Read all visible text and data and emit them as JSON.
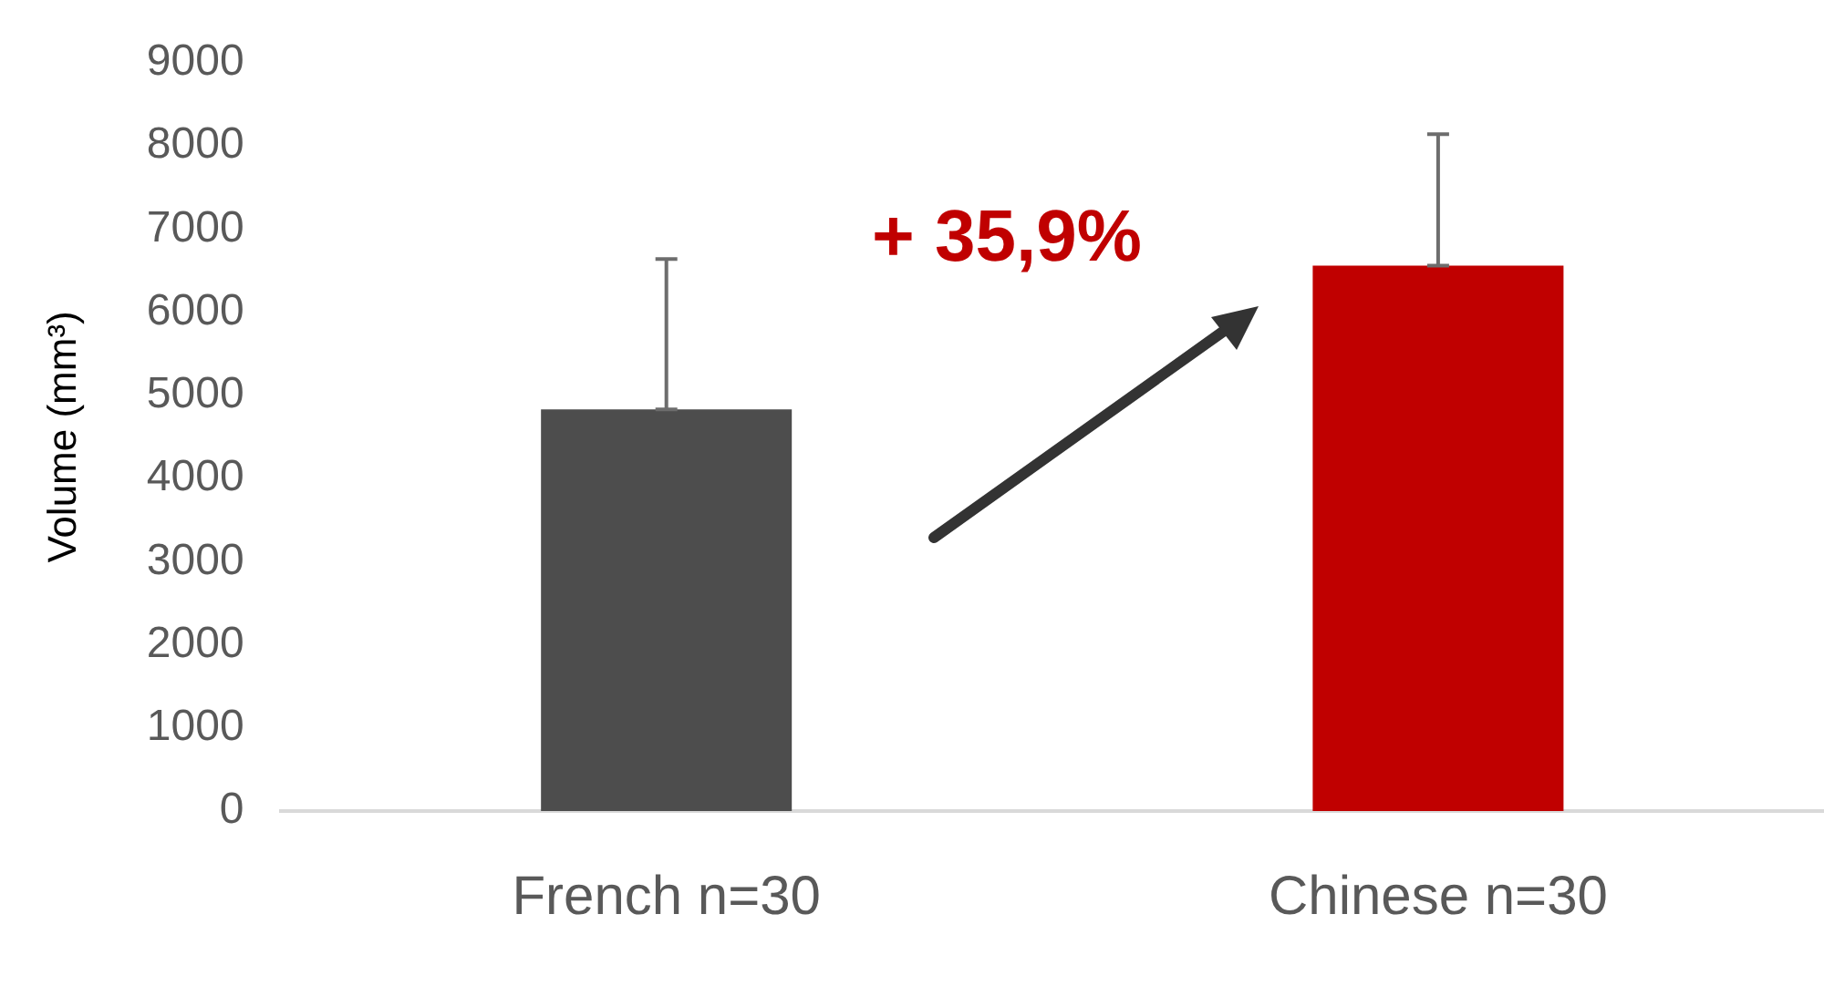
{
  "chart_data": {
    "type": "bar",
    "ylabel": "Volume (mm³)",
    "categories": [
      "French n=30",
      "Chinese n=30"
    ],
    "values": [
      4830,
      6560
    ],
    "colors": [
      "#4d4d4d",
      "#c00000"
    ],
    "errors": [
      [
        4830,
        6640
      ],
      [
        6560,
        8140
      ]
    ],
    "ylim": [
      0,
      9000
    ],
    "yticks": [
      0,
      1000,
      2000,
      3000,
      4000,
      5000,
      6000,
      7000,
      8000,
      9000
    ],
    "grid": false,
    "legend": false,
    "annotations": [
      "+ 35,9%"
    ]
  }
}
